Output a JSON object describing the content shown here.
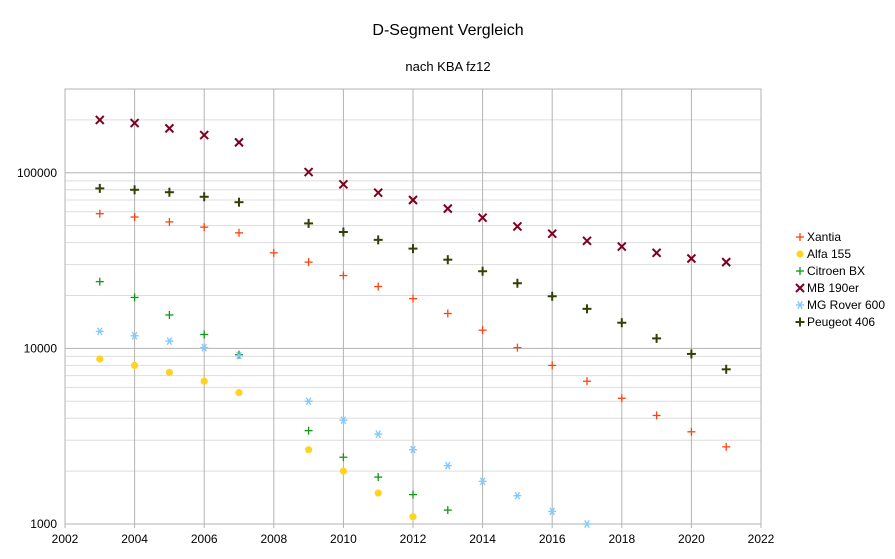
{
  "chart_data": {
    "type": "scatter",
    "title": "D-Segment Vergleich",
    "subtitle": "nach KBA fz12",
    "xlabel": "",
    "ylabel": "",
    "xlim": [
      2002,
      2022
    ],
    "ylim": [
      1000,
      300000
    ],
    "yscale": "log",
    "grid": true,
    "legend_position": "right",
    "x_ticks": [
      2002,
      2004,
      2006,
      2008,
      2010,
      2012,
      2014,
      2016,
      2018,
      2020,
      2022
    ],
    "y_ticks": [
      1000,
      10000,
      100000
    ],
    "x_tick_labels": [
      "2002",
      "2004",
      "2006",
      "2008",
      "2010",
      "2012",
      "2014",
      "2016",
      "2018",
      "2020",
      "2022"
    ],
    "y_tick_labels": [
      "1000",
      "10000",
      "100000"
    ],
    "series": [
      {
        "name": "Xantia",
        "color": "#ff420e",
        "marker": "plus",
        "points": [
          [
            2003,
            58500
          ],
          [
            2004,
            56000
          ],
          [
            2005,
            52500
          ],
          [
            2006,
            49000
          ],
          [
            2007,
            45500
          ],
          [
            2008,
            35000
          ],
          [
            2009,
            31000
          ],
          [
            2010,
            26000
          ],
          [
            2011,
            22500
          ],
          [
            2012,
            19200
          ],
          [
            2013,
            15800
          ],
          [
            2014,
            12700
          ],
          [
            2015,
            10100
          ],
          [
            2016,
            8000
          ],
          [
            2017,
            6500
          ],
          [
            2018,
            5200
          ],
          [
            2019,
            4150
          ],
          [
            2020,
            3350
          ],
          [
            2021,
            2750
          ]
        ]
      },
      {
        "name": "Alfa 155",
        "color": "#ffd320",
        "marker": "circle",
        "points": [
          [
            2003,
            8700
          ],
          [
            2004,
            8000
          ],
          [
            2005,
            7300
          ],
          [
            2006,
            6500
          ],
          [
            2007,
            5600
          ],
          [
            2009,
            2650
          ],
          [
            2010,
            2000
          ],
          [
            2011,
            1500
          ],
          [
            2012,
            1100
          ]
        ]
      },
      {
        "name": "Citroen BX",
        "color": "#109618",
        "marker": "plus",
        "points": [
          [
            2003,
            24000
          ],
          [
            2004,
            19500
          ],
          [
            2005,
            15500
          ],
          [
            2006,
            12000
          ],
          [
            2007,
            9200
          ],
          [
            2009,
            3400
          ],
          [
            2010,
            2400
          ],
          [
            2011,
            1850
          ],
          [
            2012,
            1470
          ],
          [
            2013,
            1200
          ]
        ]
      },
      {
        "name": "MB 190er",
        "color": "#7e0021",
        "marker": "x",
        "points": [
          [
            2003,
            200000
          ],
          [
            2004,
            192000
          ],
          [
            2005,
            179000
          ],
          [
            2006,
            164000
          ],
          [
            2007,
            149000
          ],
          [
            2009,
            101000
          ],
          [
            2010,
            86000
          ],
          [
            2011,
            77000
          ],
          [
            2012,
            70000
          ],
          [
            2013,
            62500
          ],
          [
            2014,
            55500
          ],
          [
            2015,
            49500
          ],
          [
            2016,
            45000
          ],
          [
            2017,
            41000
          ],
          [
            2018,
            38000
          ],
          [
            2019,
            35000
          ],
          [
            2020,
            32500
          ],
          [
            2021,
            31000
          ]
        ]
      },
      {
        "name": "MG Rover 600",
        "color": "#83caff",
        "marker": "asterisk",
        "points": [
          [
            2003,
            12500
          ],
          [
            2004,
            11800
          ],
          [
            2005,
            11000
          ],
          [
            2006,
            10100
          ],
          [
            2007,
            9100
          ],
          [
            2009,
            5000
          ],
          [
            2010,
            3900
          ],
          [
            2011,
            3250
          ],
          [
            2012,
            2650
          ],
          [
            2013,
            2150
          ],
          [
            2014,
            1750
          ],
          [
            2015,
            1450
          ],
          [
            2016,
            1180
          ],
          [
            2017,
            1000
          ]
        ]
      },
      {
        "name": "Peugeot 406",
        "color": "#314004",
        "marker": "plusbold",
        "points": [
          [
            2003,
            81500
          ],
          [
            2004,
            80000
          ],
          [
            2005,
            77500
          ],
          [
            2006,
            73000
          ],
          [
            2007,
            68000
          ],
          [
            2009,
            51500
          ],
          [
            2010,
            46000
          ],
          [
            2011,
            41500
          ],
          [
            2012,
            37000
          ],
          [
            2013,
            32000
          ],
          [
            2014,
            27500
          ],
          [
            2015,
            23500
          ],
          [
            2016,
            19800
          ],
          [
            2017,
            16800
          ],
          [
            2018,
            14000
          ],
          [
            2019,
            11400
          ],
          [
            2020,
            9300
          ],
          [
            2021,
            7600
          ]
        ]
      }
    ]
  }
}
